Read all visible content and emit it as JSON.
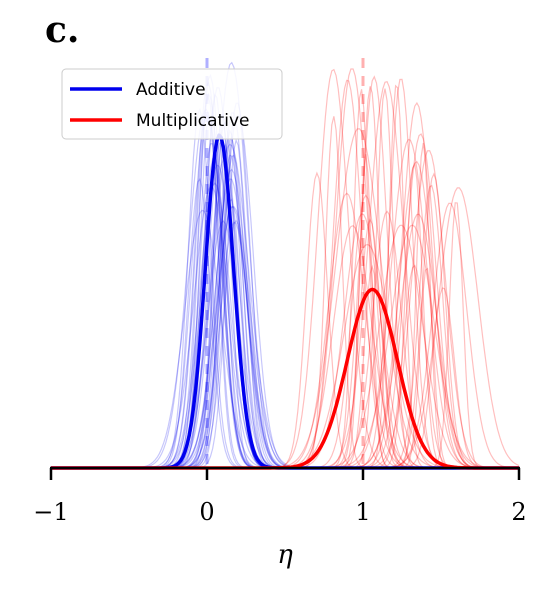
{
  "panel_label": "c.",
  "chart_data": {
    "type": "line",
    "title": "",
    "xlabel": "η",
    "ylabel": "",
    "xlim": [
      -1,
      2
    ],
    "ylim": [
      0,
      1.0
    ],
    "xticks": [
      -1,
      0,
      1,
      2
    ],
    "xtick_labels": [
      "−1",
      "0",
      "1",
      "2"
    ],
    "show_y_axis": false,
    "grid": false,
    "legend": {
      "position": "top-left"
    },
    "reference_lines": [
      {
        "x": 0,
        "color": "#b0b0ff",
        "style": "dashed"
      },
      {
        "x": 1,
        "color": "#ffb0b0",
        "style": "dashed"
      }
    ],
    "series": [
      {
        "name": "Additive",
        "color": "#0000ee",
        "kind": "gaussian",
        "mean": 0.08,
        "sd": 0.09,
        "peak": 0.82,
        "emphasis": "bold"
      },
      {
        "name": "Multiplicative",
        "color": "#ff0000",
        "kind": "gaussian",
        "mean": 1.06,
        "sd": 0.16,
        "peak": 0.44,
        "emphasis": "bold"
      }
    ],
    "ensemble": [
      {
        "group": "Additive",
        "color": "#0000ee",
        "count": 40,
        "mean_range": [
          -0.05,
          0.2
        ],
        "sd_range": [
          0.05,
          0.12
        ],
        "peak_range": [
          0.6,
          1.0
        ]
      },
      {
        "group": "Multiplicative",
        "color": "#ff0000",
        "count": 40,
        "mean_range": [
          0.7,
          1.62
        ],
        "sd_range": [
          0.04,
          0.15
        ],
        "peak_range": [
          0.42,
          1.0
        ]
      }
    ]
  }
}
